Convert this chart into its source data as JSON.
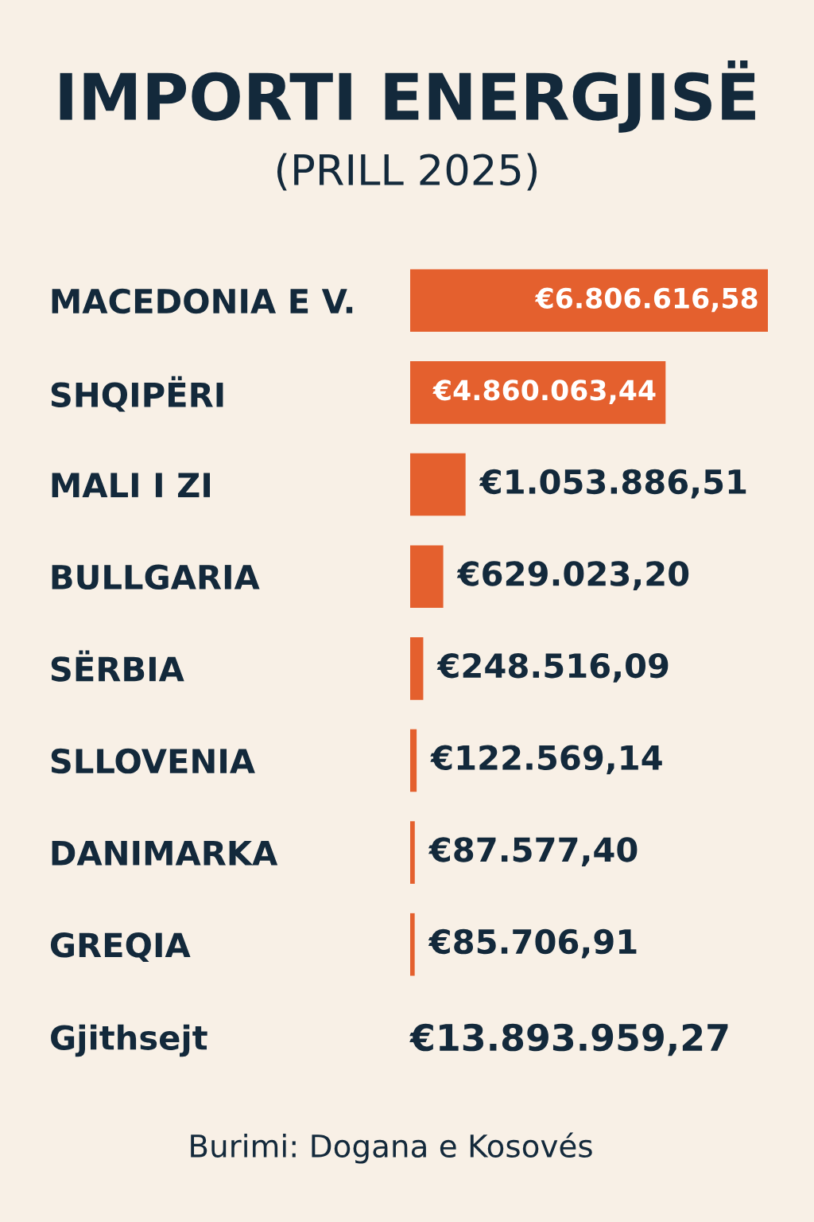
{
  "chart_data": {
    "type": "bar",
    "orientation": "horizontal",
    "title": "IMPORTI ENERGJISË",
    "subtitle": "(PRILL 2025)",
    "categories": [
      "MACEDONIA E V.",
      "SHQIPËRI",
      "MALI I ZI",
      "BULLGARIA",
      "SËRBIA",
      "SLLOVENIA",
      "DANIMARKA",
      "GREQIA"
    ],
    "values": [
      6806616.58,
      4860063.44,
      1053886.51,
      629023.2,
      248516.09,
      122569.14,
      87577.4,
      85706.91
    ],
    "value_labels": [
      "€6.806.616,58",
      "€4.860.063,44",
      "€1.053.886,51",
      "€629.023,20",
      "€248.516,09",
      "€122.569,14",
      "€87.577,40",
      "€85.706,91"
    ],
    "color": "#e4602e",
    "xlim": [
      0,
      6806616.58
    ],
    "tick_labels": "y",
    "grid": false,
    "legend": false,
    "annotations": [
      "Gjithsejt",
      "€13.893.959,27",
      "Burimi: Dogana e Kosovés"
    ]
  }
}
